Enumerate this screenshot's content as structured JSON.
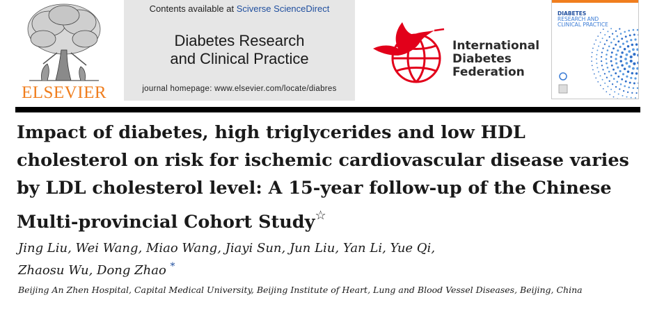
{
  "publisher": {
    "wordmark": "ELSEVIER"
  },
  "journal_header": {
    "contents_prefix": "Contents available at ",
    "contents_link": "Sciverse ScienceDirect",
    "title_line1": "Diabetes Research",
    "title_line2": "and Clinical Practice",
    "homepage": "journal homepage: www.elsevier.com/locate/diabres"
  },
  "idf": {
    "line1": "International",
    "line2": "Diabetes",
    "line3": "Federation"
  },
  "cover": {
    "line1": "DIABETES",
    "line2": "RESEARCH AND",
    "line3": "CLINICAL PRACTICE"
  },
  "article": {
    "title_line1": "Impact of diabetes, high triglycerides and low HDL",
    "title_line2": "cholesterol on risk for ischemic cardiovascular disease varies",
    "title_line3": "by LDL cholesterol level: A 15-year follow-up of the Chinese",
    "title_line4": "Multi-provincial Cohort Study",
    "title_mark": "☆",
    "authors_line1": "Jing Liu, Wei Wang, Miao Wang, Jiayi Sun, Jun Liu, Yan Li, Yue Qi,",
    "authors_line2": "Zhaosu Wu, Dong Zhao",
    "corresponding_mark": "*",
    "affiliation": "Beijing An Zhen Hospital, Capital Medical University, Beijing Institute of Heart, Lung and Blood Vessel Diseases, Beijing, China"
  },
  "colors": {
    "elsevier_orange": "#f07e1e",
    "idf_red": "#e2001a",
    "link_blue": "#1f4e9e"
  }
}
